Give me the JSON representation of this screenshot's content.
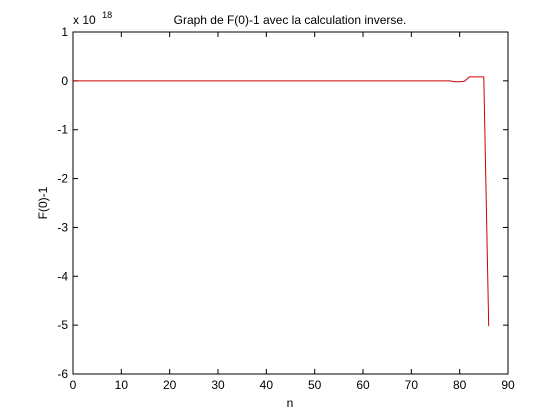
{
  "chart_data": {
    "type": "line",
    "title": "Graph de F(0)-1 avec la calculation inverse.",
    "xlabel": "n",
    "ylabel": "F(0)-1",
    "xlim": [
      0,
      90
    ],
    "ylim": [
      -6,
      1
    ],
    "xticks": [
      "0",
      "10",
      "20",
      "30",
      "40",
      "50",
      "60",
      "70",
      "80",
      "90"
    ],
    "yticks": [
      "1",
      "0",
      "-1",
      "-2",
      "-3",
      "-4",
      "-5",
      "-6"
    ],
    "y_scale_base": "x 10",
    "y_scale_exponent": "18",
    "grid": false,
    "legend": "none",
    "line_color": "#cc0000",
    "series": [
      {
        "x": [
          0,
          10,
          20,
          30,
          40,
          50,
          60,
          70,
          78,
          79,
          80,
          81,
          82,
          83,
          84,
          85,
          86
        ],
        "values": [
          0,
          0,
          0,
          0,
          0,
          0,
          0,
          0,
          0,
          -0.02,
          -0.02,
          -0.01,
          0.08,
          0.08,
          0.08,
          0.08,
          -5.02
        ]
      }
    ]
  }
}
